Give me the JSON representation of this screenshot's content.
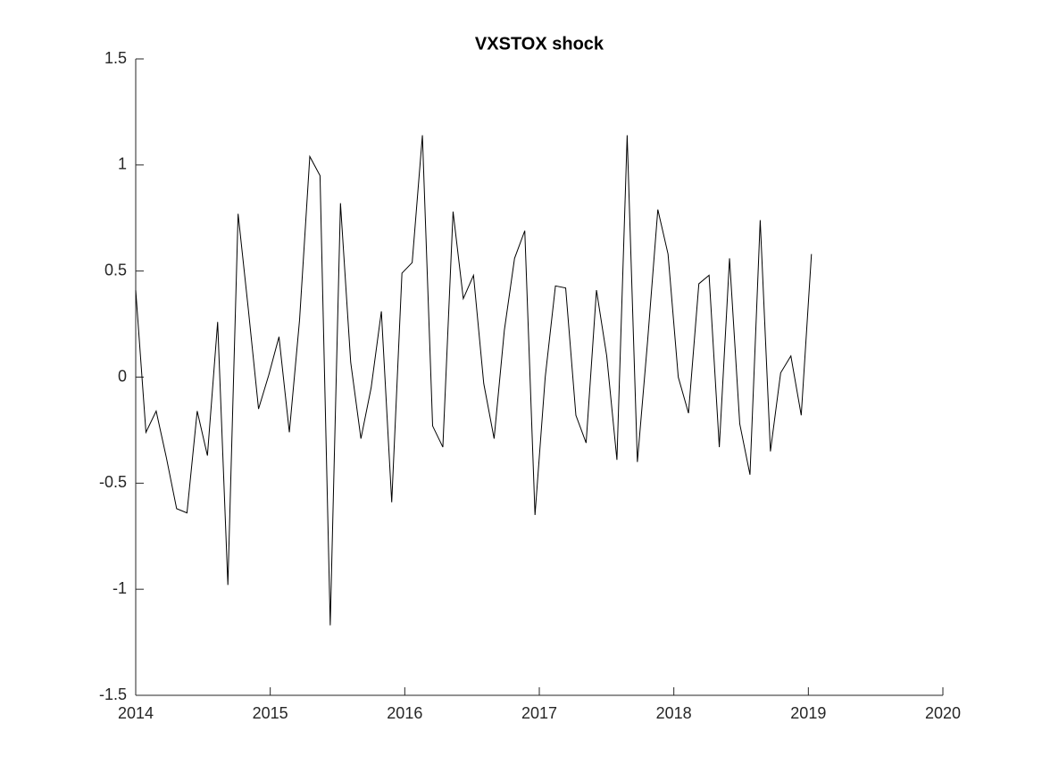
{
  "chart_data": {
    "type": "line",
    "title": "VXSTOX shock",
    "x": [
      2014.0,
      2014.076,
      2014.152,
      2014.228,
      2014.304,
      2014.381,
      2014.457,
      2014.533,
      2014.609,
      2014.685,
      2014.761,
      2014.837,
      2014.913,
      2014.989,
      2015.065,
      2015.142,
      2015.218,
      2015.294,
      2015.37,
      2015.446,
      2015.522,
      2015.598,
      2015.674,
      2015.75,
      2015.826,
      2015.903,
      2015.979,
      2016.055,
      2016.131,
      2016.207,
      2016.283,
      2016.359,
      2016.435,
      2016.511,
      2016.587,
      2016.664,
      2016.74,
      2016.816,
      2016.892,
      2016.968,
      2017.044,
      2017.12,
      2017.196,
      2017.272,
      2017.348,
      2017.425,
      2017.501,
      2017.577,
      2017.653,
      2017.729,
      2017.805,
      2017.881,
      2017.957,
      2018.033,
      2018.109,
      2018.186,
      2018.262,
      2018.338,
      2018.414,
      2018.49,
      2018.566,
      2018.642,
      2018.718,
      2018.794,
      2018.87,
      2018.947,
      2019.023
    ],
    "values": [
      0.41,
      -0.26,
      -0.16,
      -0.38,
      -0.62,
      -0.64,
      -0.16,
      -0.37,
      0.26,
      -0.98,
      0.77,
      0.32,
      -0.15,
      0.01,
      0.19,
      -0.26,
      0.27,
      1.04,
      0.95,
      -1.17,
      0.82,
      0.07,
      -0.29,
      -0.05,
      0.31,
      -0.59,
      0.49,
      0.54,
      1.14,
      -0.23,
      -0.33,
      0.78,
      0.37,
      0.48,
      -0.03,
      -0.29,
      0.22,
      0.56,
      0.69,
      -0.65,
      0.0,
      0.43,
      0.42,
      -0.18,
      -0.31,
      0.41,
      0.1,
      -0.39,
      1.14,
      -0.4,
      0.17,
      0.79,
      0.58,
      0.0,
      -0.17,
      0.44,
      0.48,
      -0.33,
      0.56,
      -0.22,
      -0.46,
      0.74,
      -0.35,
      0.02,
      0.1,
      -0.18,
      0.58
    ],
    "color": "#000000",
    "xlim": [
      2014,
      2020
    ],
    "xticks": [
      2014,
      2015,
      2016,
      2017,
      2018,
      2019,
      2020
    ],
    "ylim": [
      -1.5,
      1.5
    ],
    "yticks": [
      -1.5,
      -1,
      -0.5,
      0,
      0.5,
      1,
      1.5
    ],
    "grid": false
  }
}
